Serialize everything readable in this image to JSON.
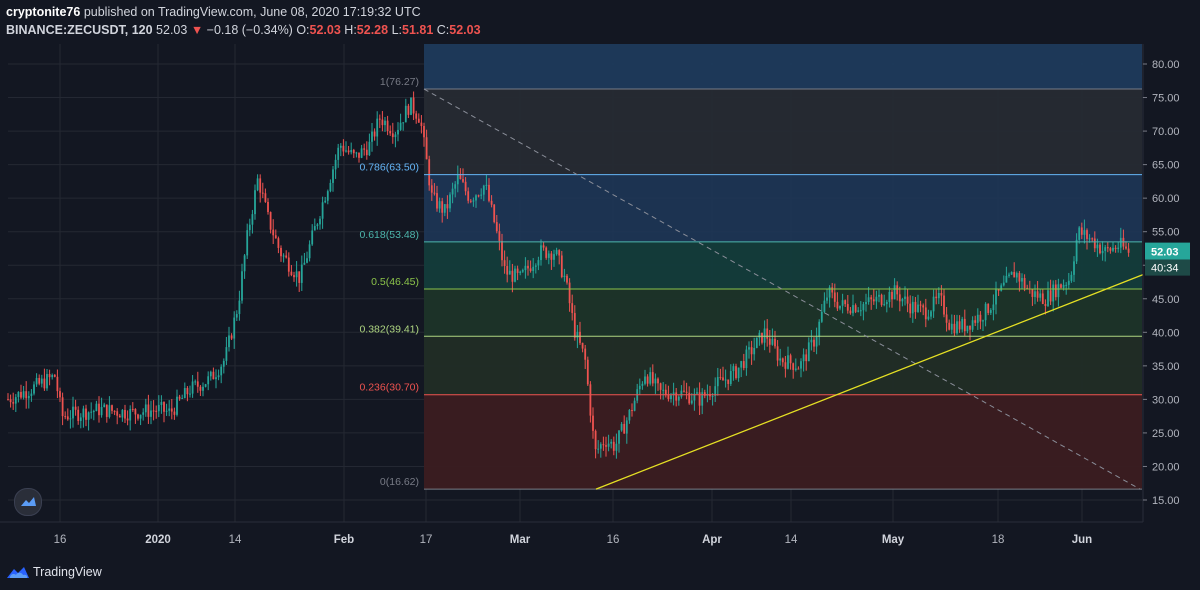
{
  "header": {
    "author": "cryptonite76",
    "published_text": "published on TradingView.com, June 08, 2020 17:19:32 UTC",
    "symbol": "BINANCE:ZECUSDT, 120",
    "last": "52.03",
    "arrow": "▼",
    "change": "−0.18 (−0.34%)",
    "o_label": "O:",
    "o_val": "52.03",
    "h_label": "H:",
    "h_val": "52.28",
    "l_label": "L:",
    "l_val": "51.81",
    "c_label": "C:",
    "c_val": "52.03"
  },
  "footer": {
    "brand": "TradingView"
  },
  "colors": {
    "background": "#131722",
    "up": "#26a69a",
    "down": "#ef5350",
    "trendline": "#e5e024",
    "fib_top_zone": "#1e3a5f"
  },
  "chart_data": {
    "type": "candlestick",
    "y_axis": {
      "ticks": [
        "80.00",
        "75.00",
        "70.00",
        "65.00",
        "60.00",
        "55.00",
        "50.00",
        "45.00",
        "40.00",
        "35.00",
        "30.00",
        "25.00",
        "20.00",
        "15.00"
      ],
      "ylim": [
        12,
        85
      ]
    },
    "x_axis": {
      "ticks": [
        "16",
        "2020",
        "14",
        "Feb",
        "17",
        "Mar",
        "16",
        "Apr",
        "14",
        "May",
        "18",
        "Jun"
      ]
    },
    "fib_levels": [
      {
        "label": "1(76.27)",
        "value": 76.27,
        "color": "#787b86"
      },
      {
        "label": "0.786(63.50)",
        "value": 63.5,
        "color": "#64b5f6"
      },
      {
        "label": "0.618(53.48)",
        "value": 53.48,
        "color": "#4db6ac"
      },
      {
        "label": "0.5(46.45)",
        "value": 46.45,
        "color": "#8bc34a"
      },
      {
        "label": "0.382(39.41)",
        "value": 39.41,
        "color": "#aed581"
      },
      {
        "label": "0.236(30.70)",
        "value": 30.7,
        "color": "#ef5350"
      },
      {
        "label": "0(16.62)",
        "value": 16.62,
        "color": "#787b86"
      }
    ],
    "price_labels": {
      "last": "52.03",
      "timer": "40:34"
    },
    "trend_key_points": [
      [
        0,
        29.5
      ],
      [
        30,
        31.5
      ],
      [
        55,
        33.5
      ],
      [
        62,
        27.5
      ],
      [
        100,
        28.5
      ],
      [
        130,
        28.0
      ],
      [
        160,
        28.5
      ],
      [
        170,
        28.0
      ],
      [
        190,
        31.5
      ],
      [
        210,
        33.0
      ],
      [
        225,
        36.0
      ],
      [
        238,
        44.0
      ],
      [
        248,
        55.0
      ],
      [
        258,
        63.0
      ],
      [
        268,
        57.0
      ],
      [
        280,
        52.0
      ],
      [
        300,
        48.0
      ],
      [
        318,
        57.0
      ],
      [
        330,
        63.0
      ],
      [
        340,
        68.0
      ],
      [
        355,
        66.0
      ],
      [
        370,
        68.0
      ],
      [
        380,
        72.0
      ],
      [
        395,
        70.0
      ],
      [
        410,
        74.0
      ],
      [
        420,
        72.0
      ],
      [
        432,
        60.0
      ],
      [
        445,
        58.0
      ],
      [
        458,
        63.0
      ],
      [
        470,
        60.0
      ],
      [
        485,
        62.0
      ],
      [
        495,
        56.0
      ],
      [
        505,
        49.0
      ],
      [
        520,
        48.0
      ],
      [
        540,
        52.0
      ],
      [
        555,
        52.0
      ],
      [
        565,
        48.0
      ],
      [
        575,
        40.0
      ],
      [
        585,
        36.0
      ],
      [
        595,
        22.0
      ],
      [
        605,
        24.0
      ],
      [
        615,
        23.0
      ],
      [
        630,
        28.0
      ],
      [
        645,
        34.0
      ],
      [
        660,
        31.0
      ],
      [
        680,
        31.0
      ],
      [
        700,
        30.0
      ],
      [
        715,
        32.0
      ],
      [
        735,
        34.0
      ],
      [
        750,
        37.0
      ],
      [
        765,
        40.0
      ],
      [
        780,
        36.0
      ],
      [
        800,
        35.0
      ],
      [
        815,
        39.0
      ],
      [
        828,
        46.0
      ],
      [
        840,
        44.0
      ],
      [
        860,
        44.0
      ],
      [
        880,
        45.0
      ],
      [
        895,
        46.0
      ],
      [
        910,
        44.0
      ],
      [
        925,
        43.0
      ],
      [
        940,
        45.0
      ],
      [
        950,
        41.0
      ],
      [
        965,
        41.0
      ],
      [
        985,
        43.0
      ],
      [
        1000,
        46.0
      ],
      [
        1015,
        49.0
      ],
      [
        1030,
        46.0
      ],
      [
        1045,
        45.0
      ],
      [
        1060,
        47.0
      ],
      [
        1070,
        48.0
      ],
      [
        1078,
        55.0
      ],
      [
        1090,
        54.0
      ],
      [
        1105,
        52.0
      ],
      [
        1120,
        53.0
      ],
      [
        1128,
        52.0
      ]
    ]
  }
}
